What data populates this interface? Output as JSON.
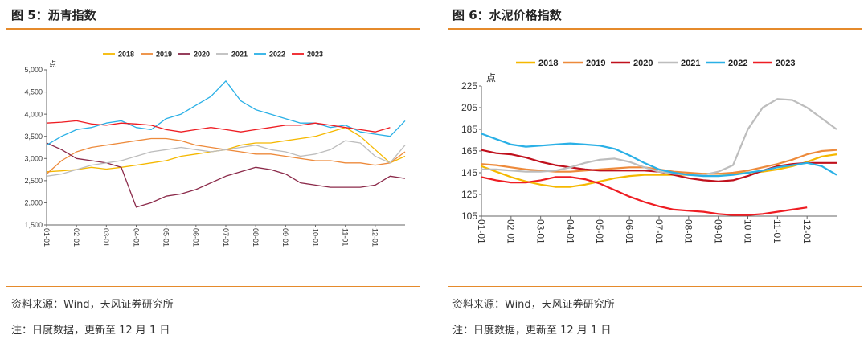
{
  "colors": {
    "2018": "#f5b800",
    "2019": "#ed8a3b",
    "2020": "#8b2a4a",
    "2020b": "#c0101c",
    "2021": "#bdbdbd",
    "2022": "#2ab0e6",
    "2023": "#ee1d23",
    "rule": "#e58a2b"
  },
  "panels": [
    {
      "title": "图 5：沥青指数",
      "source": "资料来源：Wind，天风证券研究所",
      "note": "注：日度数据，更新至 12 月 1 日",
      "chart_data": {
        "type": "line",
        "ylabel": "点",
        "ylim": [
          1500,
          5000
        ],
        "yticks": [
          "5,000",
          "4,500",
          "4,000",
          "3,500",
          "3,000",
          "2,500",
          "2,000",
          "1,500"
        ],
        "ytick_values": [
          5000,
          4500,
          4000,
          3500,
          3000,
          2500,
          2000,
          1500
        ],
        "xlim": [
          0,
          12
        ],
        "xticks": [
          "01-01",
          "02-01",
          "03-01",
          "04-01",
          "05-01",
          "06-01",
          "07-01",
          "08-01",
          "09-01",
          "10-01",
          "11-01",
          "12-01"
        ],
        "legend": "top",
        "series": [
          {
            "name": "2018",
            "color": "#f5b800",
            "x": [
              0,
              0.5,
              1,
              1.5,
              2,
              2.5,
              3,
              3.5,
              4,
              4.5,
              5,
              5.5,
              6,
              6.5,
              7,
              7.5,
              8,
              8.5,
              9,
              9.5,
              10,
              10.5,
              11,
              11.5,
              12
            ],
            "y": [
              2700,
              2720,
              2750,
              2800,
              2760,
              2800,
              2850,
              2900,
              2950,
              3050,
              3100,
              3150,
              3200,
              3300,
              3350,
              3350,
              3400,
              3450,
              3500,
              3600,
              3700,
              3500,
              3200,
              2900,
              3050
            ]
          },
          {
            "name": "2019",
            "color": "#ed8a3b",
            "x": [
              0,
              0.5,
              1,
              1.5,
              2,
              2.5,
              3,
              3.5,
              4,
              4.5,
              5,
              5.5,
              6,
              6.5,
              7,
              7.5,
              8,
              8.5,
              9,
              9.5,
              10,
              10.5,
              11,
              11.5,
              12
            ],
            "y": [
              2650,
              2950,
              3150,
              3250,
              3300,
              3350,
              3400,
              3450,
              3450,
              3400,
              3300,
              3250,
              3200,
              3150,
              3100,
              3100,
              3050,
              3000,
              2950,
              2950,
              2900,
              2900,
              2850,
              2900,
              3150
            ]
          },
          {
            "name": "2020",
            "color": "#8b2a4a",
            "x": [
              0,
              0.5,
              1,
              1.5,
              2,
              2.5,
              3,
              3.5,
              4,
              4.5,
              5,
              5.5,
              6,
              6.5,
              7,
              7.5,
              8,
              8.5,
              9,
              9.5,
              10,
              10.5,
              11,
              11.5,
              12
            ],
            "y": [
              3350,
              3200,
              3000,
              2950,
              2900,
              2800,
              1900,
              2000,
              2150,
              2200,
              2300,
              2450,
              2600,
              2700,
              2800,
              2750,
              2650,
              2450,
              2400,
              2350,
              2350,
              2350,
              2400,
              2600,
              2550
            ]
          },
          {
            "name": "2021",
            "color": "#bdbdbd",
            "x": [
              0,
              0.5,
              1,
              1.5,
              2,
              2.5,
              3,
              3.5,
              4,
              4.5,
              5,
              5.5,
              6,
              6.5,
              7,
              7.5,
              8,
              8.5,
              9,
              9.5,
              10,
              10.5,
              11,
              11.5,
              12
            ],
            "y": [
              2600,
              2650,
              2750,
              2850,
              2900,
              2950,
              3050,
              3150,
              3200,
              3250,
              3200,
              3150,
              3200,
              3250,
              3300,
              3200,
              3150,
              3050,
              3100,
              3200,
              3400,
              3350,
              3050,
              2900,
              3300
            ]
          },
          {
            "name": "2022",
            "color": "#2ab0e6",
            "x": [
              0,
              0.5,
              1,
              1.5,
              2,
              2.5,
              3,
              3.5,
              4,
              4.5,
              5,
              5.5,
              6,
              6.5,
              7,
              7.5,
              8,
              8.5,
              9,
              9.5,
              10,
              10.5,
              11,
              11.5,
              12
            ],
            "y": [
              3300,
              3500,
              3650,
              3700,
              3800,
              3850,
              3700,
              3650,
              3900,
              4000,
              4200,
              4400,
              4750,
              4300,
              4100,
              4000,
              3900,
              3800,
              3800,
              3700,
              3750,
              3600,
              3550,
              3500,
              3850
            ]
          },
          {
            "name": "2023",
            "color": "#ee1d23",
            "x": [
              0,
              0.5,
              1,
              1.5,
              2,
              2.5,
              3,
              3.5,
              4,
              4.5,
              5,
              5.5,
              6,
              6.5,
              7,
              7.5,
              8,
              8.5,
              9,
              9.5,
              10,
              10.5,
              11,
              11.5
            ],
            "y": [
              3800,
              3820,
              3850,
              3780,
              3750,
              3800,
              3780,
              3750,
              3650,
              3600,
              3650,
              3700,
              3650,
              3600,
              3650,
              3700,
              3750,
              3750,
              3800,
              3750,
              3700,
              3650,
              3600,
              3700
            ]
          }
        ]
      }
    },
    {
      "title": "图 6：水泥价格指数",
      "source": "资料来源：Wind，天风证券研究所",
      "note": "注：日度数据，更新至 12 月 1 日",
      "chart_data": {
        "type": "line",
        "ylabel": "点",
        "ylim": [
          105,
          225
        ],
        "yticks": [
          "225",
          "205",
          "185",
          "165",
          "145",
          "125",
          "105"
        ],
        "ytick_values": [
          225,
          205,
          185,
          165,
          145,
          125,
          105
        ],
        "xlim": [
          0,
          12
        ],
        "xticks": [
          "01-01",
          "02-01",
          "03-01",
          "04-01",
          "05-01",
          "06-01",
          "07-01",
          "08-01",
          "09-01",
          "10-01",
          "11-01",
          "12-01"
        ],
        "legend": "top",
        "series": [
          {
            "name": "2018",
            "color": "#f5b800",
            "x": [
              0,
              0.5,
              1,
              1.5,
              2,
              2.5,
              3,
              3.5,
              4,
              4.5,
              5,
              5.5,
              6,
              6.5,
              7,
              7.5,
              8,
              8.5,
              9,
              9.5,
              10,
              10.5,
              11,
              11.5,
              12
            ],
            "y": [
              151,
              146,
              141,
              137,
              134,
              132,
              132,
              134,
              137,
              140,
              142,
              143,
              143,
              143,
              143,
              144,
              144,
              144,
              145,
              146,
              148,
              151,
              155,
              160,
              162
            ]
          },
          {
            "name": "2019",
            "color": "#ed8a3b",
            "x": [
              0,
              0.5,
              1,
              1.5,
              2,
              2.5,
              3,
              3.5,
              4,
              4.5,
              5,
              5.5,
              6,
              6.5,
              7,
              7.5,
              8,
              8.5,
              9,
              9.5,
              10,
              10.5,
              11,
              11.5,
              12
            ],
            "y": [
              153,
              152,
              150,
              148,
              147,
              146,
              146,
              147,
              148,
              149,
              150,
              150,
              148,
              146,
              145,
              144,
              144,
              145,
              147,
              150,
              153,
              157,
              162,
              165,
              166
            ]
          },
          {
            "name": "2020",
            "color": "#c0101c",
            "x": [
              0,
              0.5,
              1,
              1.5,
              2,
              2.5,
              3,
              3.5,
              4,
              4.5,
              5,
              5.5,
              6,
              6.5,
              7,
              7.5,
              8,
              8.5,
              9,
              9.5,
              10,
              10.5,
              11,
              11.5,
              12
            ],
            "y": [
              166,
              163,
              162,
              159,
              155,
              152,
              150,
              148,
              147,
              147,
              147,
              147,
              146,
              143,
              140,
              138,
              137,
              138,
              142,
              147,
              151,
              153,
              154,
              154,
              154
            ]
          },
          {
            "name": "2021",
            "color": "#bdbdbd",
            "x": [
              0,
              0.5,
              1,
              1.5,
              2,
              2.5,
              3,
              3.5,
              4,
              4.5,
              5,
              5.5,
              6,
              6.5,
              7,
              7.5,
              8,
              8.5,
              9,
              9.5,
              10,
              10.5,
              11,
              11.5,
              12
            ],
            "y": [
              148,
              148,
              147,
              146,
              146,
              147,
              150,
              154,
              157,
              158,
              155,
              150,
              146,
              144,
              143,
              143,
              146,
              152,
              185,
              205,
              213,
              212,
              205,
              195,
              185
            ]
          },
          {
            "name": "2022",
            "color": "#2ab0e6",
            "x": [
              0,
              0.5,
              1,
              1.5,
              2,
              2.5,
              3,
              3.5,
              4,
              4.5,
              5,
              5.5,
              6,
              6.5,
              7,
              7.5,
              8,
              8.5,
              9,
              9.5,
              10,
              10.5,
              11,
              11.5,
              12
            ],
            "y": [
              181,
              176,
              171,
              169,
              170,
              171,
              172,
              171,
              170,
              167,
              161,
              154,
              148,
              145,
              143,
              142,
              142,
              143,
              145,
              147,
              150,
              152,
              154,
              151,
              143
            ]
          },
          {
            "name": "2023",
            "color": "#ee1d23",
            "x": [
              0,
              0.5,
              1,
              1.5,
              2,
              2.5,
              3,
              3.5,
              4,
              4.5,
              5,
              5.5,
              6,
              6.5,
              7,
              7.5,
              8,
              8.5,
              9,
              9.5,
              10,
              10.5,
              11
            ],
            "y": [
              141,
              138,
              136,
              136,
              138,
              141,
              141,
              139,
              135,
              129,
              123,
              118,
              114,
              111,
              110,
              109,
              107,
              106,
              106,
              107,
              109,
              111,
              113
            ]
          }
        ]
      }
    }
  ]
}
